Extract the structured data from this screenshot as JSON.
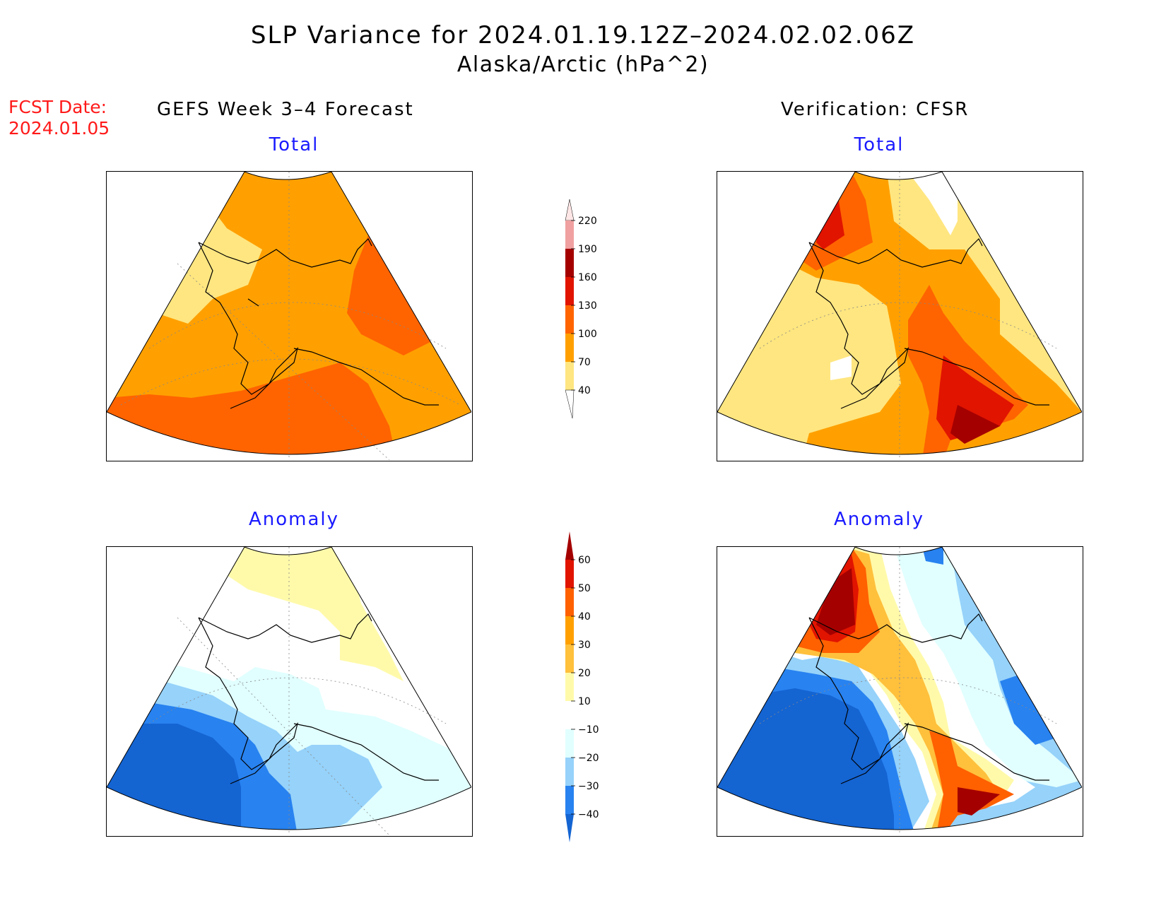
{
  "title": "SLP Variance for 2024.01.19.12Z–2024.02.02.06Z",
  "subtitle": "Alaska/Arctic (hPa^2)",
  "forecast": {
    "label": "FCST Date:",
    "date": "2024.01.05"
  },
  "columns": {
    "left_header": "GEFS Week 3–4 Forecast",
    "right_header": "Verification: CFSR"
  },
  "panels": {
    "forecast_total": {
      "title": "Total"
    },
    "verification_total": {
      "title": "Total"
    },
    "forecast_anomaly": {
      "title": "Anomaly"
    },
    "verification_anomaly": {
      "title": "Anomaly"
    }
  },
  "colorbars": {
    "total": {
      "labels": [
        "40",
        "70",
        "100",
        "130",
        "160",
        "190",
        "220"
      ],
      "colors": [
        "#ffe680",
        "#ffa000",
        "#ff6400",
        "#e11400",
        "#a50000",
        "#f0a0a0",
        "#ffe6e6"
      ]
    },
    "anomaly": {
      "labels": [
        "−40",
        "−30",
        "−20",
        "−10",
        "10",
        "20",
        "30",
        "40",
        "50",
        "60"
      ],
      "colors": [
        "#1464d2",
        "#2882f0",
        "#96d2fa",
        "#e1ffff",
        "#ffffff",
        "#fffaaa",
        "#ffc03c",
        "#ffa000",
        "#ff6000",
        "#e11400",
        "#a50000"
      ]
    }
  }
}
